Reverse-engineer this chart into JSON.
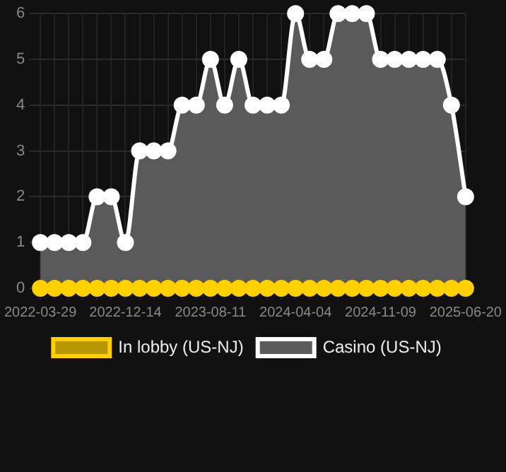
{
  "chart_data": {
    "type": "area",
    "categories": [
      "2022-03-29",
      null,
      null,
      null,
      null,
      null,
      "2022-12-14",
      null,
      null,
      null,
      null,
      null,
      "2023-08-11",
      null,
      null,
      null,
      null,
      null,
      "2024-04-04",
      null,
      null,
      null,
      null,
      null,
      "2024-11-09",
      null,
      null,
      null,
      null,
      null,
      "2025-06-20"
    ],
    "series": [
      {
        "name": "In lobby (US-NJ)",
        "type": "line",
        "color": "#ffd000",
        "values": [
          0,
          0,
          0,
          0,
          0,
          0,
          0,
          0,
          0,
          0,
          0,
          0,
          0,
          0,
          0,
          0,
          0,
          0,
          0,
          0,
          0,
          0,
          0,
          0,
          0,
          0,
          0,
          0,
          0,
          0,
          0
        ]
      },
      {
        "name": "Casino (US-NJ)",
        "color": "#ffffff",
        "values": [
          1,
          1,
          1,
          1,
          2,
          2,
          1,
          3,
          3,
          3,
          4,
          4,
          5,
          4,
          5,
          4,
          4,
          4,
          6,
          5,
          5,
          6,
          6,
          6,
          5,
          5,
          5,
          5,
          5,
          4,
          2
        ]
      }
    ],
    "ylim": [
      0,
      6
    ],
    "yticks": [
      0,
      1,
      2,
      3,
      4,
      5,
      6
    ],
    "grid": true,
    "legend": "bottom",
    "marker": "circle"
  }
}
